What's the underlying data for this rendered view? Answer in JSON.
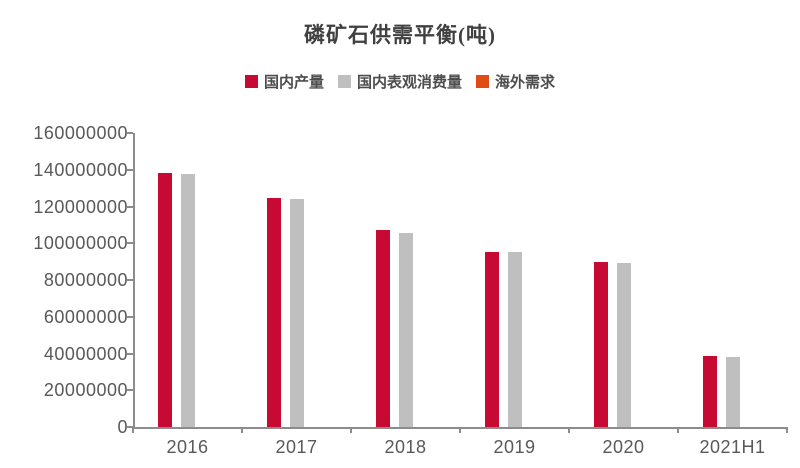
{
  "chart_data": {
    "type": "bar",
    "title": "磷矿石供需平衡(吨)",
    "categories": [
      "2016",
      "2017",
      "2018",
      "2019",
      "2020",
      "2021H1"
    ],
    "series": [
      {
        "name": "国内产量",
        "color": "#C70A33",
        "values": [
          138000000,
          124500000,
          107000000,
          95500000,
          90000000,
          38500000
        ]
      },
      {
        "name": "国内表观消费量",
        "color": "#BFBFBF",
        "values": [
          137500000,
          124000000,
          105500000,
          95000000,
          89500000,
          38000000
        ]
      },
      {
        "name": "海外需求",
        "color": "#DF4D15",
        "values": [
          0,
          0,
          0,
          0,
          0,
          0
        ]
      }
    ],
    "ylim": [
      0,
      160000000
    ],
    "ytick_interval": 20000000,
    "yticks": [
      "160000000",
      "140000000",
      "120000000",
      "100000000",
      "80000000",
      "60000000",
      "40000000",
      "20000000",
      "0"
    ],
    "xlabel": "",
    "ylabel": "",
    "grid": false,
    "legend_position": "top",
    "colors": {
      "axis": "#8C8C8C",
      "tick_label": "#595959",
      "title": "#404040",
      "background": "#FFFFFF"
    }
  }
}
